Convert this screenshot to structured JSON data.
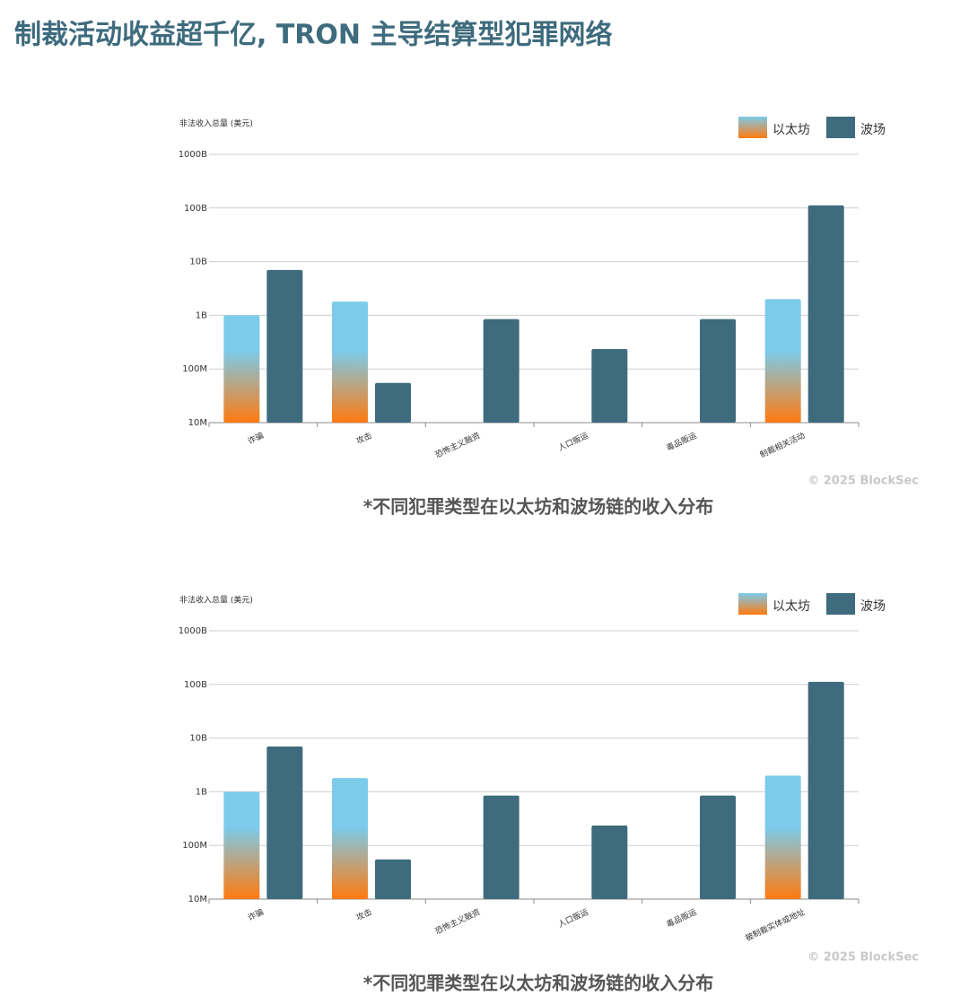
{
  "title": "制裁活动收益超千亿, TRON 主导结算型犯罪网络",
  "chart_data": [
    {
      "type": "bar",
      "log_scale": true,
      "grid": true,
      "legend": "top-right",
      "y_label": "非法收入总量 (美元)",
      "categories": [
        "诈骗",
        "攻击",
        "恐怖主义融资",
        "人口贩运",
        "毒品贩运",
        "制裁相关活动"
      ],
      "series": [
        {
          "name": "以太坊",
          "color": "#7ccbeb",
          "gradient_color": "#ff7a10",
          "values": [
            1000000000,
            1800000000,
            null,
            null,
            null,
            2000000000
          ]
        },
        {
          "name": "波场",
          "color": "#3e6b7d",
          "values": [
            7000000000,
            55000000,
            850000000,
            235000000,
            850000000,
            112000000000
          ]
        }
      ],
      "ylim": [
        10000000,
        1000000000000
      ],
      "yticks": [
        {
          "value": 10000000,
          "label": "10M"
        },
        {
          "value": 100000000,
          "label": "100M"
        },
        {
          "value": 1000000000,
          "label": "1B"
        },
        {
          "value": 10000000000,
          "label": "10B"
        },
        {
          "value": 100000000000,
          "label": "100B"
        },
        {
          "value": 1000000000000,
          "label": "1000B"
        }
      ],
      "source": "© 2025 BlockSec",
      "caption": "*不同犯罪类型在以太坊和波场链的收入分布"
    },
    {
      "type": "bar",
      "log_scale": true,
      "grid": true,
      "legend": "top-right",
      "y_label": "非法收入总量 (美元)",
      "categories": [
        "诈骗",
        "攻击",
        "恐怖主义融资",
        "人口贩运",
        "毒品贩运",
        "被制裁实体或地址"
      ],
      "series": [
        {
          "name": "以太坊",
          "color": "#7ccbeb",
          "gradient_color": "#ff7a10",
          "values": [
            1000000000,
            1800000000,
            null,
            null,
            null,
            2000000000
          ]
        },
        {
          "name": "波场",
          "color": "#3e6b7d",
          "values": [
            7000000000,
            55000000,
            850000000,
            235000000,
            850000000,
            112000000000
          ]
        }
      ],
      "ylim": [
        10000000,
        1000000000000
      ],
      "yticks": [
        {
          "value": 10000000,
          "label": "10M"
        },
        {
          "value": 100000000,
          "label": "100M"
        },
        {
          "value": 1000000000,
          "label": "1B"
        },
        {
          "value": 10000000000,
          "label": "10B"
        },
        {
          "value": 100000000000,
          "label": "100B"
        },
        {
          "value": 1000000000000,
          "label": "1000B"
        }
      ],
      "source": "© 2025 BlockSec",
      "caption": "*不同犯罪类型在以太坊和波场链的收入分布"
    }
  ]
}
